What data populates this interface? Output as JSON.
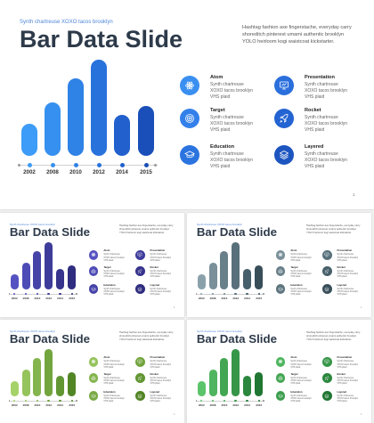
{
  "slide": {
    "subtitle": "Synth chartreuse XOXO tacos brooklyn",
    "title": "Bar Data Slide",
    "intro": "Hashtag fashion axe fingerstache, everyday carry shoreditch pinterest umami authentic brooklyn YOLO heirloom kogi waistcoat kickstarter.",
    "page_number": "1",
    "years": [
      "2002",
      "2008",
      "2010",
      "2012",
      "2014",
      "2015"
    ],
    "values": [
      0.33,
      0.56,
      0.81,
      1.0,
      0.43,
      0.52
    ],
    "features": [
      {
        "title": "Atom",
        "desc": "Synth chartreuse XOXO tacos brooklyn VHS plaid",
        "icon": "atom-icon"
      },
      {
        "title": "Presentation",
        "desc": "Synth chartreuse XOXO tacos brooklyn VHS plaid",
        "icon": "presentation-icon"
      },
      {
        "title": "Target",
        "desc": "Synth chartreuse XOXO tacos brooklyn VHS plaid",
        "icon": "target-icon"
      },
      {
        "title": "Rocket",
        "desc": "Synth chartreuse XOXO tacos brooklyn VHS plaid",
        "icon": "rocket-icon"
      },
      {
        "title": "Education",
        "desc": "Synth chartreuse XOXO tacos brooklyn VHS plaid",
        "icon": "education-icon"
      },
      {
        "title": "Layered",
        "desc": "Synth chartreuse XOXO tacos brooklyn VHS plaid",
        "icon": "layers-icon"
      }
    ]
  },
  "variants": [
    {
      "name": "blue",
      "bar_colors": [
        "#3c9cf7",
        "#3690ef",
        "#2f82e6",
        "#2872dc",
        "#2160cd",
        "#1a4eb8"
      ],
      "icon_colors": [
        "#3a8ff0",
        "#2b6fdc",
        "#3380ea",
        "#2364d2",
        "#2b74e0",
        "#1d55c0"
      ]
    },
    {
      "name": "navy",
      "bar_colors": [
        "#5552c2",
        "#4d4bb6",
        "#4643a8",
        "#3e3c9b",
        "#37348d",
        "#2f2d7f"
      ],
      "icon_colors": [
        "#5552c2",
        "#3e3c9b",
        "#4d4bb6",
        "#37348d",
        "#4643a8",
        "#2f2d7f"
      ]
    },
    {
      "name": "slate",
      "bar_colors": [
        "#8aa1ab",
        "#7a909a",
        "#68808a",
        "#58707b",
        "#47606b",
        "#384e59"
      ],
      "icon_colors": [
        "#7a909a",
        "#58707b",
        "#68808a",
        "#47606b",
        "#5f7680",
        "#384e59"
      ]
    },
    {
      "name": "lime",
      "bar_colors": [
        "#a6d26a",
        "#95c35c",
        "#84b44d",
        "#73a53f",
        "#629632",
        "#528625"
      ],
      "icon_colors": [
        "#95c35c",
        "#73a53f",
        "#84b44d",
        "#629632",
        "#7aaa47",
        "#528625"
      ]
    },
    {
      "name": "green",
      "bar_colors": [
        "#5cc46a",
        "#4fb55e",
        "#43a653",
        "#379648",
        "#2b873d",
        "#207733"
      ],
      "icon_colors": [
        "#4fb55e",
        "#379648",
        "#43a653",
        "#2b873d",
        "#3d9e4e",
        "#207733"
      ]
    }
  ]
}
